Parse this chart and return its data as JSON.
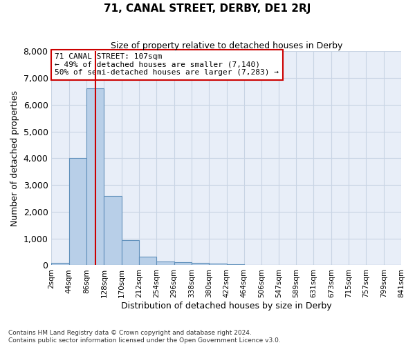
{
  "title": "71, CANAL STREET, DERBY, DE1 2RJ",
  "subtitle": "Size of property relative to detached houses in Derby",
  "xlabel": "Distribution of detached houses by size in Derby",
  "ylabel": "Number of detached properties",
  "footnote": "Contains HM Land Registry data © Crown copyright and database right 2024.\nContains public sector information licensed under the Open Government Licence v3.0.",
  "bar_color": "#b8cfe8",
  "bar_edge_color": "#6090bb",
  "grid_color": "#c8d4e4",
  "background_color": "#e8eef8",
  "annotation_box_color": "#cc0000",
  "vline_color": "#cc0000",
  "annotation_line1": "71 CANAL STREET: 107sqm",
  "annotation_line2": "← 49% of detached houses are smaller (7,140)",
  "annotation_line3": "50% of semi-detached houses are larger (7,283) →",
  "property_size_sqm": 107,
  "bin_edges": [
    2,
    44,
    86,
    128,
    170,
    212,
    254,
    296,
    338,
    380,
    422,
    464,
    506,
    547,
    589,
    631,
    673,
    715,
    757,
    799,
    841
  ],
  "bar_heights": [
    80,
    4000,
    6600,
    2600,
    950,
    320,
    130,
    120,
    80,
    55,
    30,
    20,
    0,
    0,
    0,
    0,
    0,
    0,
    0,
    0
  ],
  "ylim": [
    0,
    8000
  ],
  "yticks": [
    0,
    1000,
    2000,
    3000,
    4000,
    5000,
    6000,
    7000,
    8000
  ]
}
